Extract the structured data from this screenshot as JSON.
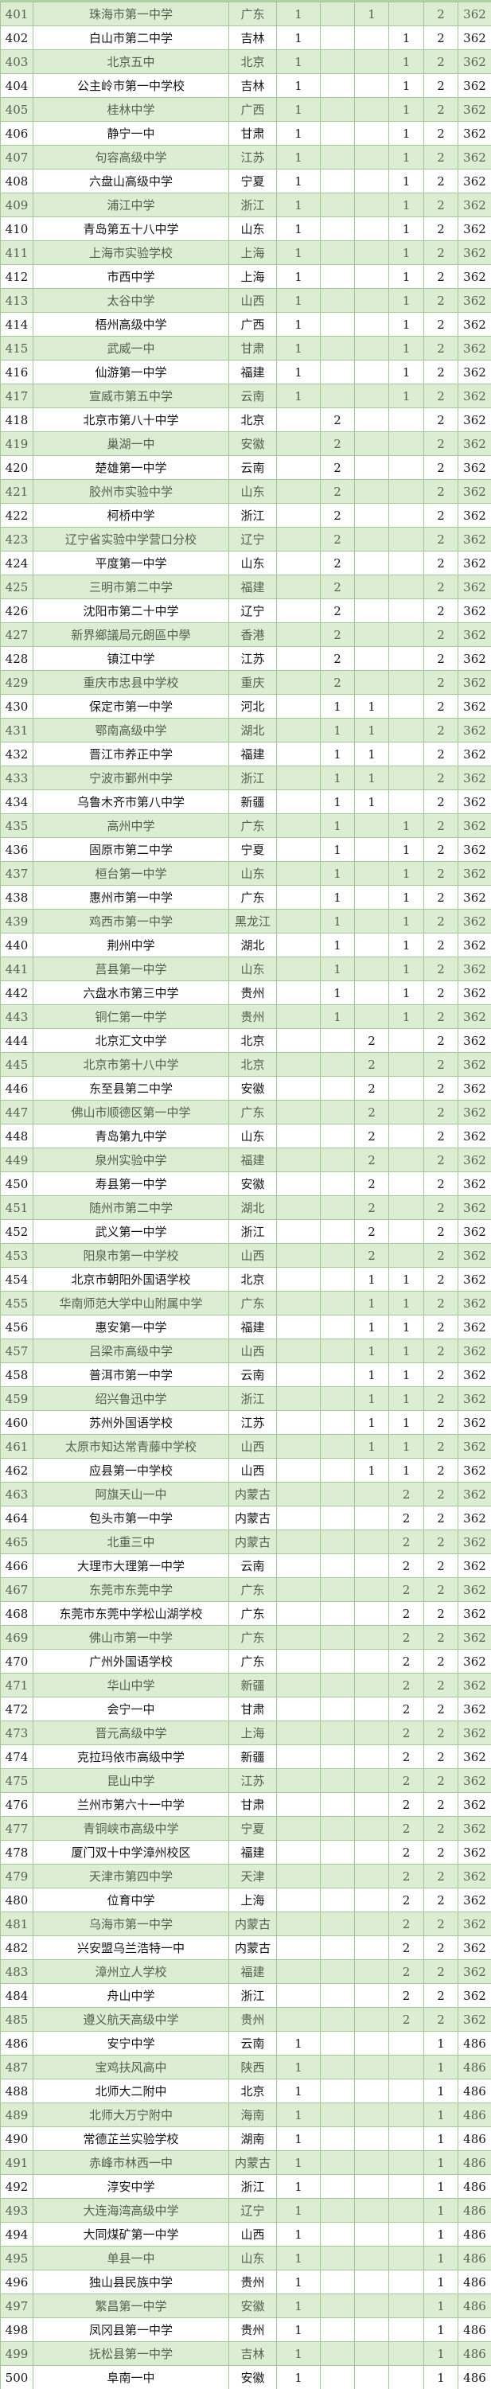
{
  "table": {
    "columns": [
      {
        "key": "rank",
        "css": "c-rank"
      },
      {
        "key": "school-name",
        "css": "c-name"
      },
      {
        "key": "province",
        "css": "c-prov"
      },
      {
        "key": "count-a",
        "css": "c-num"
      },
      {
        "key": "count-b",
        "css": "c-num"
      },
      {
        "key": "count-c",
        "css": "c-num"
      },
      {
        "key": "count-d",
        "css": "c-num"
      },
      {
        "key": "total",
        "css": "c-total"
      },
      {
        "key": "overall-rank",
        "css": "c-score"
      }
    ],
    "rows": [
      [
        "401",
        "珠海市第一中学",
        "广东",
        "1",
        "",
        "1",
        "",
        "2",
        "362"
      ],
      [
        "402",
        "白山市第二中学",
        "吉林",
        "1",
        "",
        "",
        "1",
        "2",
        "362"
      ],
      [
        "403",
        "北京五中",
        "北京",
        "1",
        "",
        "",
        "1",
        "2",
        "362"
      ],
      [
        "404",
        "公主岭市第一中学校",
        "吉林",
        "1",
        "",
        "",
        "1",
        "2",
        "362"
      ],
      [
        "405",
        "桂林中学",
        "广西",
        "1",
        "",
        "",
        "1",
        "2",
        "362"
      ],
      [
        "406",
        "静宁一中",
        "甘肃",
        "1",
        "",
        "",
        "1",
        "2",
        "362"
      ],
      [
        "407",
        "句容高级中学",
        "江苏",
        "1",
        "",
        "",
        "1",
        "2",
        "362"
      ],
      [
        "408",
        "六盘山高级中学",
        "宁夏",
        "1",
        "",
        "",
        "1",
        "2",
        "362"
      ],
      [
        "409",
        "浦江中学",
        "浙江",
        "1",
        "",
        "",
        "1",
        "2",
        "362"
      ],
      [
        "410",
        "青岛第五十八中学",
        "山东",
        "1",
        "",
        "",
        "1",
        "2",
        "362"
      ],
      [
        "411",
        "上海市实验学校",
        "上海",
        "1",
        "",
        "",
        "1",
        "2",
        "362"
      ],
      [
        "412",
        "市西中学",
        "上海",
        "1",
        "",
        "",
        "1",
        "2",
        "362"
      ],
      [
        "413",
        "太谷中学",
        "山西",
        "1",
        "",
        "",
        "1",
        "2",
        "362"
      ],
      [
        "414",
        "梧州高级中学",
        "广西",
        "1",
        "",
        "",
        "1",
        "2",
        "362"
      ],
      [
        "415",
        "武威一中",
        "甘肃",
        "1",
        "",
        "",
        "1",
        "2",
        "362"
      ],
      [
        "416",
        "仙游第一中学",
        "福建",
        "1",
        "",
        "",
        "1",
        "2",
        "362"
      ],
      [
        "417",
        "宣威市第五中学",
        "云南",
        "1",
        "",
        "",
        "1",
        "2",
        "362"
      ],
      [
        "418",
        "北京市第八十中学",
        "北京",
        "",
        "2",
        "",
        "",
        "2",
        "362"
      ],
      [
        "419",
        "巢湖一中",
        "安徽",
        "",
        "2",
        "",
        "",
        "2",
        "362"
      ],
      [
        "420",
        "楚雄第一中学",
        "云南",
        "",
        "2",
        "",
        "",
        "2",
        "362"
      ],
      [
        "421",
        "胶州市实验中学",
        "山东",
        "",
        "2",
        "",
        "",
        "2",
        "362"
      ],
      [
        "422",
        "柯桥中学",
        "浙江",
        "",
        "2",
        "",
        "",
        "2",
        "362"
      ],
      [
        "423",
        "辽宁省实验中学营口分校",
        "辽宁",
        "",
        "2",
        "",
        "",
        "2",
        "362"
      ],
      [
        "424",
        "平度第一中学",
        "山东",
        "",
        "2",
        "",
        "",
        "2",
        "362"
      ],
      [
        "425",
        "三明市第二中学",
        "福建",
        "",
        "2",
        "",
        "",
        "2",
        "362"
      ],
      [
        "426",
        "沈阳市第二十中学",
        "辽宁",
        "",
        "2",
        "",
        "",
        "2",
        "362"
      ],
      [
        "427",
        "新界鄉議局元朗區中學",
        "香港",
        "",
        "2",
        "",
        "",
        "2",
        "362"
      ],
      [
        "428",
        "镇江中学",
        "江苏",
        "",
        "2",
        "",
        "",
        "2",
        "362"
      ],
      [
        "429",
        "重庆市忠县中学校",
        "重庆",
        "",
        "2",
        "",
        "",
        "2",
        "362"
      ],
      [
        "430",
        "保定市第一中学",
        "河北",
        "",
        "1",
        "1",
        "",
        "2",
        "362"
      ],
      [
        "431",
        "鄂南高级中学",
        "湖北",
        "",
        "1",
        "1",
        "",
        "2",
        "362"
      ],
      [
        "432",
        "晋江市养正中学",
        "福建",
        "",
        "1",
        "1",
        "",
        "2",
        "362"
      ],
      [
        "433",
        "宁波市鄞州中学",
        "浙江",
        "",
        "1",
        "1",
        "",
        "2",
        "362"
      ],
      [
        "434",
        "乌鲁木齐市第八中学",
        "新疆",
        "",
        "1",
        "1",
        "",
        "2",
        "362"
      ],
      [
        "435",
        "高州中学",
        "广东",
        "",
        "1",
        "",
        "1",
        "2",
        "362"
      ],
      [
        "436",
        "固原市第二中学",
        "宁夏",
        "",
        "1",
        "",
        "1",
        "2",
        "362"
      ],
      [
        "437",
        "桓台第一中学",
        "山东",
        "",
        "1",
        "",
        "1",
        "2",
        "362"
      ],
      [
        "438",
        "惠州市第一中学",
        "广东",
        "",
        "1",
        "",
        "1",
        "2",
        "362"
      ],
      [
        "439",
        "鸡西市第一中学",
        "黑龙江",
        "",
        "1",
        "",
        "1",
        "2",
        "362"
      ],
      [
        "440",
        "荆州中学",
        "湖北",
        "",
        "1",
        "",
        "1",
        "2",
        "362"
      ],
      [
        "441",
        "莒县第一中学",
        "山东",
        "",
        "1",
        "",
        "1",
        "2",
        "362"
      ],
      [
        "442",
        "六盘水市第三中学",
        "贵州",
        "",
        "1",
        "",
        "1",
        "2",
        "362"
      ],
      [
        "443",
        "铜仁第一中学",
        "贵州",
        "",
        "1",
        "",
        "1",
        "2",
        "362"
      ],
      [
        "444",
        "北京汇文中学",
        "北京",
        "",
        "",
        "2",
        "",
        "2",
        "362"
      ],
      [
        "445",
        "北京市第十八中学",
        "北京",
        "",
        "",
        "2",
        "",
        "2",
        "362"
      ],
      [
        "446",
        "东至县第二中学",
        "安徽",
        "",
        "",
        "2",
        "",
        "2",
        "362"
      ],
      [
        "447",
        "佛山市顺德区第一中学",
        "广东",
        "",
        "",
        "2",
        "",
        "2",
        "362"
      ],
      [
        "448",
        "青岛第九中学",
        "山东",
        "",
        "",
        "2",
        "",
        "2",
        "362"
      ],
      [
        "449",
        "泉州实验中学",
        "福建",
        "",
        "",
        "2",
        "",
        "2",
        "362"
      ],
      [
        "450",
        "寿县第一中学",
        "安徽",
        "",
        "",
        "2",
        "",
        "2",
        "362"
      ],
      [
        "451",
        "随州市第二中学",
        "湖北",
        "",
        "",
        "2",
        "",
        "2",
        "362"
      ],
      [
        "452",
        "武义第一中学",
        "浙江",
        "",
        "",
        "2",
        "",
        "2",
        "362"
      ],
      [
        "453",
        "阳泉市第一中学校",
        "山西",
        "",
        "",
        "2",
        "",
        "2",
        "362"
      ],
      [
        "454",
        "北京市朝阳外国语学校",
        "北京",
        "",
        "",
        "1",
        "1",
        "2",
        "362"
      ],
      [
        "455",
        "华南师范大学中山附属中学",
        "广东",
        "",
        "",
        "1",
        "1",
        "2",
        "362"
      ],
      [
        "456",
        "惠安第一中学",
        "福建",
        "",
        "",
        "1",
        "1",
        "2",
        "362"
      ],
      [
        "457",
        "吕梁市高级中学",
        "山西",
        "",
        "",
        "1",
        "1",
        "2",
        "362"
      ],
      [
        "458",
        "普洱市第一中学",
        "云南",
        "",
        "",
        "1",
        "1",
        "2",
        "362"
      ],
      [
        "459",
        "绍兴鲁迅中学",
        "浙江",
        "",
        "",
        "1",
        "1",
        "2",
        "362"
      ],
      [
        "460",
        "苏州外国语学校",
        "江苏",
        "",
        "",
        "1",
        "1",
        "2",
        "362"
      ],
      [
        "461",
        "太原市知达常青藤中学校",
        "山西",
        "",
        "",
        "1",
        "1",
        "2",
        "362"
      ],
      [
        "462",
        "应县第一中学校",
        "山西",
        "",
        "",
        "1",
        "1",
        "2",
        "362"
      ],
      [
        "463",
        "阿旗天山一中",
        "内蒙古",
        "",
        "",
        "",
        "2",
        "2",
        "362"
      ],
      [
        "464",
        "包头市第一中学",
        "内蒙古",
        "",
        "",
        "",
        "2",
        "2",
        "362"
      ],
      [
        "465",
        "北重三中",
        "内蒙古",
        "",
        "",
        "",
        "2",
        "2",
        "362"
      ],
      [
        "466",
        "大理市大理第一中学",
        "云南",
        "",
        "",
        "",
        "2",
        "2",
        "362"
      ],
      [
        "467",
        "东莞市东莞中学",
        "广东",
        "",
        "",
        "",
        "2",
        "2",
        "362"
      ],
      [
        "468",
        "东莞市东莞中学松山湖学校",
        "广东",
        "",
        "",
        "",
        "2",
        "2",
        "362"
      ],
      [
        "469",
        "佛山市第一中学",
        "广东",
        "",
        "",
        "",
        "2",
        "2",
        "362"
      ],
      [
        "470",
        "广州外国语学校",
        "广东",
        "",
        "",
        "",
        "2",
        "2",
        "362"
      ],
      [
        "471",
        "华山中学",
        "新疆",
        "",
        "",
        "",
        "2",
        "2",
        "362"
      ],
      [
        "472",
        "会宁一中",
        "甘肃",
        "",
        "",
        "",
        "2",
        "2",
        "362"
      ],
      [
        "473",
        "晋元高级中学",
        "上海",
        "",
        "",
        "",
        "2",
        "2",
        "362"
      ],
      [
        "474",
        "克拉玛依市高级中学",
        "新疆",
        "",
        "",
        "",
        "2",
        "2",
        "362"
      ],
      [
        "475",
        "昆山中学",
        "江苏",
        "",
        "",
        "",
        "2",
        "2",
        "362"
      ],
      [
        "476",
        "兰州市第六十一中学",
        "甘肃",
        "",
        "",
        "",
        "2",
        "2",
        "362"
      ],
      [
        "477",
        "青铜峡市高级中学",
        "宁夏",
        "",
        "",
        "",
        "2",
        "2",
        "362"
      ],
      [
        "478",
        "厦门双十中学漳州校区",
        "福建",
        "",
        "",
        "",
        "2",
        "2",
        "362"
      ],
      [
        "479",
        "天津市第四中学",
        "天津",
        "",
        "",
        "",
        "2",
        "2",
        "362"
      ],
      [
        "480",
        "位育中学",
        "上海",
        "",
        "",
        "",
        "2",
        "2",
        "362"
      ],
      [
        "481",
        "乌海市第一中学",
        "内蒙古",
        "",
        "",
        "",
        "2",
        "2",
        "362"
      ],
      [
        "482",
        "兴安盟乌兰浩特一中",
        "内蒙古",
        "",
        "",
        "",
        "2",
        "2",
        "362"
      ],
      [
        "483",
        "漳州立人学校",
        "福建",
        "",
        "",
        "",
        "2",
        "2",
        "362"
      ],
      [
        "484",
        "舟山中学",
        "浙江",
        "",
        "",
        "",
        "2",
        "2",
        "362"
      ],
      [
        "485",
        "遵义航天高级中学",
        "贵州",
        "",
        "",
        "",
        "2",
        "2",
        "362"
      ],
      [
        "486",
        "安宁中学",
        "云南",
        "1",
        "",
        "",
        "",
        "1",
        "486"
      ],
      [
        "487",
        "宝鸡扶风高中",
        "陕西",
        "1",
        "",
        "",
        "",
        "1",
        "486"
      ],
      [
        "488",
        "北师大二附中",
        "北京",
        "1",
        "",
        "",
        "",
        "1",
        "486"
      ],
      [
        "489",
        "北师大万宁附中",
        "海南",
        "1",
        "",
        "",
        "",
        "1",
        "486"
      ],
      [
        "490",
        "常德芷兰实验学校",
        "湖南",
        "1",
        "",
        "",
        "",
        "1",
        "486"
      ],
      [
        "491",
        "赤峰市林西一中",
        "内蒙古",
        "1",
        "",
        "",
        "",
        "1",
        "486"
      ],
      [
        "492",
        "淳安中学",
        "浙江",
        "1",
        "",
        "",
        "",
        "1",
        "486"
      ],
      [
        "493",
        "大连海湾高级中学",
        "辽宁",
        "1",
        "",
        "",
        "",
        "1",
        "486"
      ],
      [
        "494",
        "大同煤矿第一中学",
        "山西",
        "1",
        "",
        "",
        "",
        "1",
        "486"
      ],
      [
        "495",
        "单县一中",
        "山东",
        "1",
        "",
        "",
        "",
        "1",
        "486"
      ],
      [
        "496",
        "独山县民族中学",
        "贵州",
        "1",
        "",
        "",
        "",
        "1",
        "486"
      ],
      [
        "497",
        "繁昌第一中学",
        "安徽",
        "1",
        "",
        "",
        "",
        "1",
        "486"
      ],
      [
        "498",
        "凤冈县第一中学",
        "贵州",
        "1",
        "",
        "",
        "",
        "1",
        "486"
      ],
      [
        "499",
        "抚松县第一中学",
        "吉林",
        "1",
        "",
        "",
        "",
        "1",
        "486"
      ],
      [
        "500",
        "阜南一中",
        "安徽",
        "1",
        "",
        "",
        "",
        "1",
        "486"
      ]
    ]
  },
  "colors": {
    "row_green": "#dcedd4",
    "row_white": "#ffffff",
    "border_green": "#a2c799",
    "text_on_green": "#54614e",
    "text_on_white": "#161616"
  }
}
